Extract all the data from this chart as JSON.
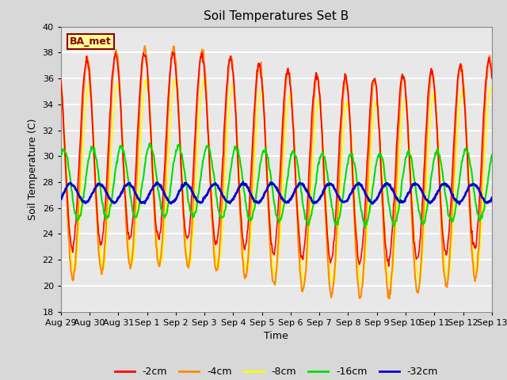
{
  "title": "Soil Temperatures Set B",
  "xlabel": "Time",
  "ylabel": "Soil Temperature (C)",
  "ylim": [
    18,
    40
  ],
  "yticks": [
    18,
    20,
    22,
    24,
    26,
    28,
    30,
    32,
    34,
    36,
    38,
    40
  ],
  "bg_color": "#d8d8d8",
  "plot_bg_color": "#e8e8e8",
  "grid_color": "#ffffff",
  "label_box_text": "BA_met",
  "label_box_bg": "#ffff99",
  "label_box_edge": "#8b0000",
  "label_box_text_color": "#8b0000",
  "series": {
    "2cm": {
      "color": "#ff0000",
      "lw": 1.2
    },
    "4cm": {
      "color": "#ff8800",
      "lw": 1.5
    },
    "8cm": {
      "color": "#ffff00",
      "lw": 1.2
    },
    "16cm": {
      "color": "#00dd00",
      "lw": 1.5
    },
    "32cm": {
      "color": "#0000cc",
      "lw": 2.0
    }
  },
  "legend_labels": [
    "-2cm",
    "-4cm",
    "-8cm",
    "-16cm",
    "-32cm"
  ],
  "legend_colors": [
    "#ff0000",
    "#ff8800",
    "#ffff00",
    "#00dd00",
    "#0000cc"
  ],
  "n_days": 15,
  "points_per_day": 48
}
